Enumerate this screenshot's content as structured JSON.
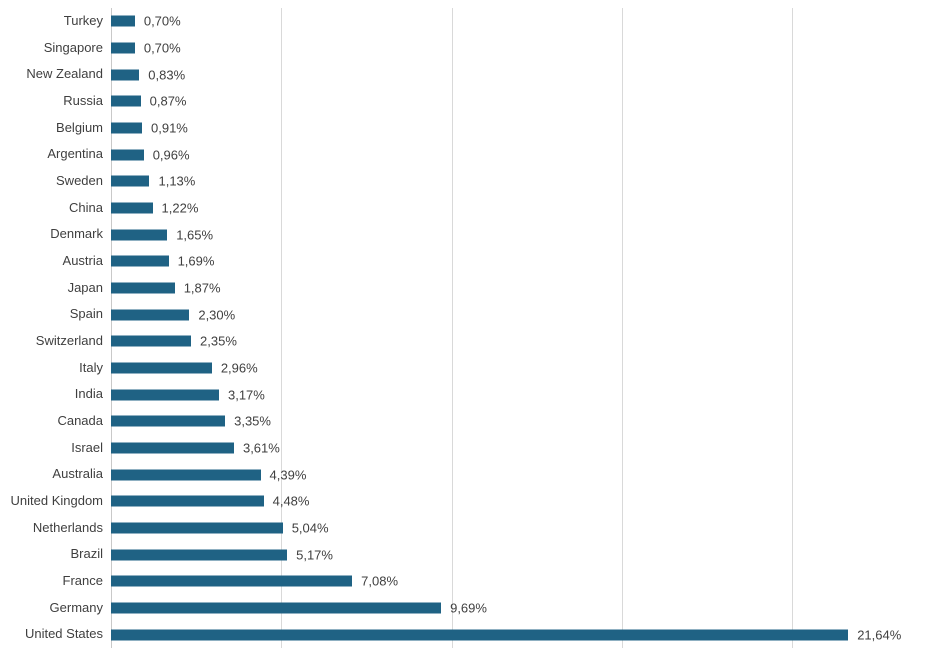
{
  "chart_data": {
    "type": "bar",
    "orientation": "horizontal",
    "title": "",
    "xlabel": "",
    "ylabel": "",
    "categories": [
      "Turkey",
      "Singapore",
      "New Zealand",
      "Russia",
      "Belgium",
      "Argentina",
      "Sweden",
      "China",
      "Denmark",
      "Austria",
      "Japan",
      "Spain",
      "Switzerland",
      "Italy",
      "India",
      "Canada",
      "Israel",
      "Australia",
      "United Kingdom",
      "Netherlands",
      "Brazil",
      "France",
      "Germany",
      "United States"
    ],
    "values": [
      0.7,
      0.7,
      0.83,
      0.87,
      0.91,
      0.96,
      1.13,
      1.22,
      1.65,
      1.69,
      1.87,
      2.3,
      2.35,
      2.96,
      3.17,
      3.35,
      3.61,
      4.39,
      4.48,
      5.04,
      5.17,
      7.08,
      9.69,
      21.64
    ],
    "value_labels": [
      "0,70%",
      "0,70%",
      "0,83%",
      "0,87%",
      "0,91%",
      "0,96%",
      "1,13%",
      "1,22%",
      "1,65%",
      "1,69%",
      "1,87%",
      "2,30%",
      "2,35%",
      "2,96%",
      "3,17%",
      "3,35%",
      "3,61%",
      "4,39%",
      "4,48%",
      "5,04%",
      "5,17%",
      "7,08%",
      "9,69%",
      "21,64%"
    ],
    "x_gridlines_pct": [
      0,
      5,
      10,
      15,
      20
    ],
    "xlim": [
      0,
      23.9
    ],
    "grid": true,
    "legend": false,
    "colors": {
      "bar": "#1f6284",
      "gridline": "#d9d9d9",
      "axis_line": "#c9c9c9",
      "text": "#3f3f3f",
      "background": "#ffffff"
    }
  }
}
